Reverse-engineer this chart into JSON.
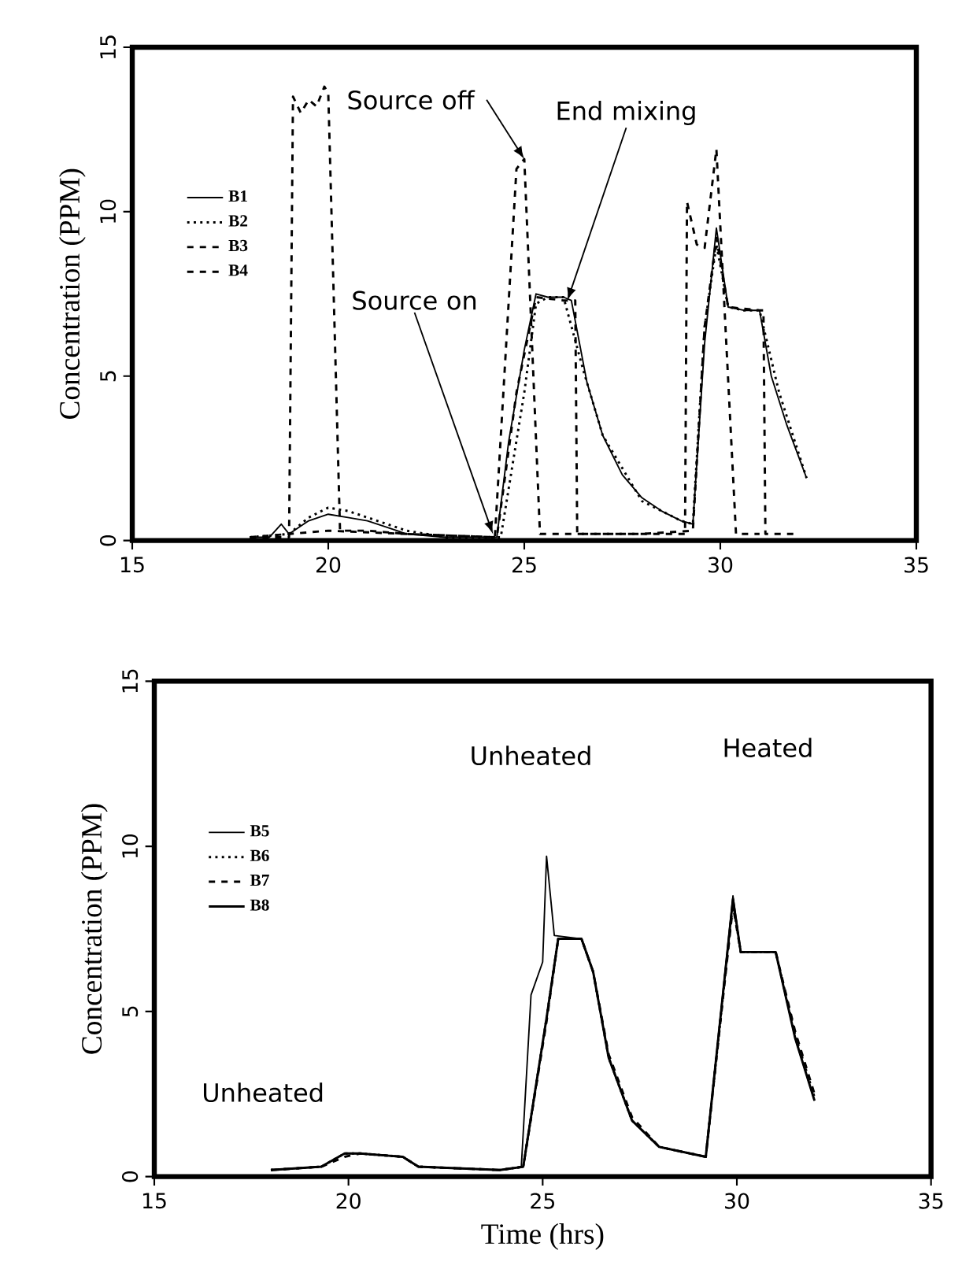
{
  "chart_data": [
    {
      "type": "line",
      "ylabel": "Concentration (PPM)",
      "xlim": [
        15,
        35
      ],
      "ylim": [
        0,
        15
      ],
      "xticks": [
        15,
        20,
        25,
        30,
        35
      ],
      "yticks": [
        0,
        5,
        10,
        15
      ],
      "grid": false,
      "legend": "left",
      "series": [
        {
          "name": "B1",
          "color": "#000000",
          "line_style": "solid",
          "x": [
            18,
            18.5,
            18.8,
            19,
            19.5,
            20,
            20.5,
            21,
            21.5,
            22,
            23,
            24,
            24.3,
            24.6,
            25,
            25.3,
            25.6,
            26,
            26.2,
            26.6,
            27,
            27.5,
            28,
            28.5,
            29,
            29.3,
            29.6,
            29.9,
            30.2,
            30.6,
            31,
            31.3,
            31.7,
            32.2
          ],
          "values": [
            0.1,
            0.1,
            0.5,
            0.2,
            0.6,
            0.8,
            0.7,
            0.6,
            0.4,
            0.2,
            0.1,
            0.1,
            0.1,
            3.0,
            5.8,
            7.5,
            7.4,
            7.4,
            7.3,
            4.8,
            3.2,
            2.0,
            1.3,
            0.9,
            0.6,
            0.5,
            6.0,
            9.5,
            7.1,
            7.0,
            7.0,
            5.0,
            3.5,
            1.9
          ]
        },
        {
          "name": "B2",
          "color": "#000000",
          "line_style": "dotted",
          "x": [
            18,
            19,
            19.5,
            20,
            20.5,
            21,
            22,
            23,
            24,
            24.4,
            25,
            25.3,
            25.6,
            26,
            26.5,
            27,
            28,
            29,
            29.3,
            29.6,
            29.9,
            30.2,
            30.6,
            31,
            31.5,
            32.2
          ],
          "values": [
            0.1,
            0.2,
            0.7,
            1.0,
            0.9,
            0.7,
            0.3,
            0.1,
            0.1,
            0.1,
            4.5,
            7.2,
            7.4,
            7.4,
            5.2,
            3.2,
            1.2,
            0.6,
            0.5,
            6.5,
            9.0,
            7.1,
            7.0,
            7.0,
            4.5,
            1.9
          ]
        },
        {
          "name": "B3",
          "color": "#000000",
          "line_style": "dashed",
          "x": [
            18,
            19.0,
            19.1,
            19.3,
            19.5,
            19.7,
            19.9,
            20.0,
            20.3,
            21,
            22,
            24.25,
            24.8,
            25.0,
            25.4,
            26,
            28,
            29.1,
            29.15,
            29.4,
            29.6,
            29.9,
            30.4,
            31
          ],
          "values": [
            0.1,
            0.1,
            13.5,
            13.0,
            13.4,
            13.2,
            13.8,
            13.6,
            0.3,
            0.3,
            0.2,
            0.1,
            11.3,
            11.6,
            0.2,
            0.2,
            0.2,
            0.2,
            10.3,
            9.0,
            8.9,
            11.9,
            0.2,
            0.2
          ]
        },
        {
          "name": "B4",
          "color": "#000000",
          "line_style": "dashed",
          "x": [
            18,
            20,
            22,
            24.3,
            24.8,
            25.3,
            26.0,
            26.3,
            26.35,
            28,
            29.3,
            29.6,
            29.9,
            30.2,
            31.0,
            31.1,
            31.15,
            32
          ],
          "values": [
            0.1,
            0.3,
            0.2,
            0.1,
            4.5,
            7.4,
            7.3,
            7.3,
            0.2,
            0.2,
            0.3,
            6.5,
            9.2,
            7.1,
            7.0,
            7.0,
            0.2,
            0.2
          ]
        }
      ],
      "annotations": [
        {
          "text": "Source off",
          "x": 25.0,
          "y": 11.6
        },
        {
          "text": "End mixing",
          "x": 26.1,
          "y": 7.3
        },
        {
          "text": "Source on",
          "x": 24.2,
          "y": 0.2
        }
      ]
    },
    {
      "type": "line",
      "xlabel": "Time (hrs)",
      "ylabel": "Concentration (PPM)",
      "xlim": [
        15,
        35
      ],
      "ylim": [
        0,
        15
      ],
      "xticks": [
        15,
        20,
        25,
        30,
        35
      ],
      "yticks": [
        0,
        5,
        10,
        15
      ],
      "grid": false,
      "legend": "left",
      "series": [
        {
          "name": "B5",
          "color": "#000000",
          "line_style": "solid",
          "x": [
            18,
            19.3,
            19.9,
            20.3,
            21.4,
            21.8,
            23.9,
            24.45,
            24.7,
            25.0,
            25.1,
            25.3,
            26.0,
            26.3,
            26.7,
            27.3,
            28.0,
            29.2,
            29.9,
            30.1,
            31.0,
            31.5,
            32.0
          ],
          "values": [
            0.2,
            0.3,
            0.7,
            0.7,
            0.6,
            0.3,
            0.2,
            0.3,
            5.5,
            6.5,
            9.7,
            7.3,
            7.2,
            6.2,
            3.6,
            1.7,
            0.9,
            0.6,
            8.5,
            6.8,
            6.8,
            4.2,
            2.3
          ]
        },
        {
          "name": "B6",
          "color": "#000000",
          "line_style": "dotted",
          "x": [
            18,
            19.3,
            19.9,
            20.3,
            21.4,
            21.8,
            23.9,
            24.5,
            25.1,
            25.4,
            26.0,
            26.3,
            26.7,
            27.3,
            28.0,
            29.2,
            29.9,
            30.1,
            31.0,
            31.5,
            32.0
          ],
          "values": [
            0.2,
            0.3,
            0.7,
            0.7,
            0.6,
            0.3,
            0.2,
            0.3,
            4.8,
            7.2,
            7.2,
            6.2,
            3.6,
            1.7,
            0.9,
            0.6,
            8.3,
            6.8,
            6.8,
            4.3,
            2.4
          ]
        },
        {
          "name": "B7",
          "color": "#000000",
          "line_style": "dashed",
          "x": [
            18,
            19.3,
            19.9,
            20.3,
            21.4,
            21.8,
            23.9,
            24.5,
            25.1,
            25.4,
            26.0,
            26.3,
            26.7,
            27.3,
            28.0,
            29.2,
            29.9,
            30.1,
            31.0,
            31.5,
            32.0
          ],
          "values": [
            0.2,
            0.3,
            0.6,
            0.7,
            0.6,
            0.3,
            0.2,
            0.3,
            4.7,
            7.2,
            7.2,
            6.2,
            3.7,
            1.8,
            0.9,
            0.6,
            8.2,
            6.8,
            6.8,
            4.4,
            2.5
          ]
        },
        {
          "name": "B8",
          "color": "#000000",
          "line_style": "solid",
          "x": [
            18,
            19.3,
            19.9,
            20.3,
            21.4,
            21.8,
            23.9,
            24.5,
            25.1,
            25.4,
            26.0,
            26.3,
            26.7,
            27.3,
            28.0,
            29.2,
            29.9,
            30.1,
            31.0,
            31.5,
            32.0
          ],
          "values": [
            0.2,
            0.3,
            0.7,
            0.7,
            0.6,
            0.3,
            0.2,
            0.3,
            4.8,
            7.2,
            7.2,
            6.2,
            3.6,
            1.7,
            0.9,
            0.6,
            8.4,
            6.8,
            6.8,
            4.2,
            2.3
          ]
        }
      ],
      "annotations": [
        "Unheated",
        "Unheated",
        "Heated"
      ]
    }
  ]
}
